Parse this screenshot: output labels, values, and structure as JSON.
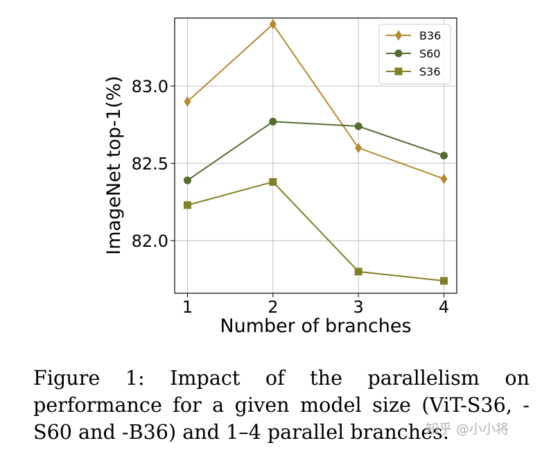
{
  "chart_data": {
    "type": "line",
    "x": [
      1,
      2,
      3,
      4
    ],
    "xlabel": "Number of branches",
    "ylabel": "ImageNet top-1(%)",
    "xlim": [
      0.85,
      4.15
    ],
    "ylim": [
      81.66,
      83.44
    ],
    "xticks": [
      1,
      2,
      3,
      4
    ],
    "yticks": [
      82.0,
      82.5,
      83.0
    ],
    "ytick_labels": [
      "82.0",
      "82.5",
      "83.0"
    ],
    "grid": true,
    "legend_position": "top-right",
    "series": [
      {
        "name": "B36",
        "marker": "diamond",
        "color": "#B38A2E",
        "values": [
          82.9,
          83.4,
          82.6,
          82.4
        ]
      },
      {
        "name": "S60",
        "marker": "circle",
        "color": "#556B2F",
        "values": [
          82.39,
          82.77,
          82.74,
          82.55
        ]
      },
      {
        "name": "S36",
        "marker": "square",
        "color": "#808026",
        "values": [
          82.23,
          82.38,
          81.8,
          81.74
        ]
      }
    ]
  },
  "caption": "Figure 1:  Impact of the parallelism on performance for a given model size (ViT-S36, -S60 and -B36) and 1–4 parallel branches.",
  "watermark": "知乎 @小小将"
}
